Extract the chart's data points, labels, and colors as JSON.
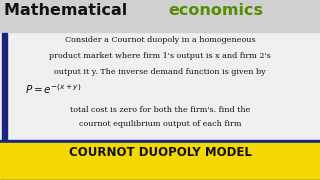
{
  "title_black": "Mathematical ",
  "title_green": "economics",
  "title_fontsize": 11.5,
  "body_text_line1": "Consider a Cournot duopoly in a homogeneous",
  "body_text_line2": "product market where firm 1's output is x and firm 2's",
  "body_text_line3": "output it y. The inverse demand function is given by",
  "formula": "$P = e^{-(x+y)}$",
  "body_text_line4": "total cost is zero for both the firm's. find the",
  "body_text_line5": "cournot equilibrium output of each firm",
  "banner_text": "COURNOT DUOPOLY MODEL",
  "bg_color": "#f0f0f0",
  "title_black_color": "#111111",
  "title_green_color": "#5a8a00",
  "body_color": "#111111",
  "banner_bg": "#f5d800",
  "banner_text_color": "#111111",
  "banner_border_color": "#1a237e",
  "left_bar_color": "#1a237e",
  "body_fontsize": 5.8,
  "formula_fontsize": 7.5,
  "banner_fontsize": 8.5
}
